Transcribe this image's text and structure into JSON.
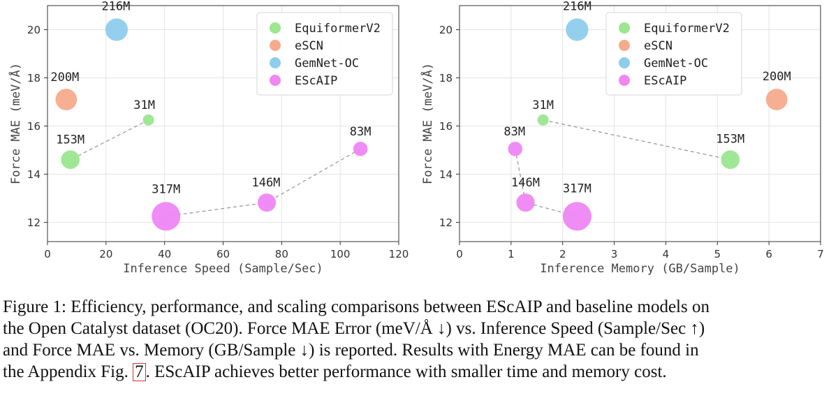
{
  "chart_data": [
    {
      "type": "scatter",
      "xlabel": "Inference Speed (Sample/Sec)",
      "ylabel": "Force MAE (meV/Å)",
      "xlim": [
        0,
        120
      ],
      "ylim": [
        11.2,
        21
      ],
      "xticks": [
        0,
        20,
        40,
        60,
        80,
        100,
        120
      ],
      "yticks": [
        12,
        14,
        16,
        18,
        20
      ],
      "grid": true,
      "legend_position": "top-right",
      "series": [
        {
          "name": "EquiformerV2",
          "color": "#9be68f",
          "points": [
            {
              "x": 34.5,
              "y": 16.25,
              "params_m": 31,
              "label": "31M"
            },
            {
              "x": 7.8,
              "y": 14.6,
              "params_m": 153,
              "label": "153M"
            }
          ],
          "connected": true
        },
        {
          "name": "eSCN",
          "color": "#f6ab8c",
          "points": [
            {
              "x": 6.4,
              "y": 17.1,
              "params_m": 200,
              "label": "200M"
            }
          ],
          "connected": false
        },
        {
          "name": "GemNet-OC",
          "color": "#8ecdec",
          "points": [
            {
              "x": 23.6,
              "y": 20.0,
              "params_m": 216,
              "label": "216M"
            }
          ],
          "connected": false
        },
        {
          "name": "EScAIP",
          "color": "#ee86f4",
          "points": [
            {
              "x": 106.9,
              "y": 15.05,
              "params_m": 83,
              "label": "83M"
            },
            {
              "x": 74.9,
              "y": 12.82,
              "params_m": 146,
              "label": "146M"
            },
            {
              "x": 40.5,
              "y": 12.25,
              "params_m": 317,
              "label": "317M"
            }
          ],
          "connected": true
        }
      ]
    },
    {
      "type": "scatter",
      "xlabel": "Inference Memory (GB/Sample)",
      "ylabel": "Force MAE (meV/Å)",
      "xlim": [
        0,
        7
      ],
      "ylim": [
        11.2,
        21
      ],
      "xticks": [
        0,
        1,
        2,
        3,
        4,
        5,
        6,
        7
      ],
      "yticks": [
        12,
        14,
        16,
        18,
        20
      ],
      "grid": true,
      "legend_position": "top-right",
      "series": [
        {
          "name": "EquiformerV2",
          "color": "#9be68f",
          "points": [
            {
              "x": 1.62,
              "y": 16.25,
              "params_m": 31,
              "label": "31M"
            },
            {
              "x": 5.25,
              "y": 14.6,
              "params_m": 153,
              "label": "153M"
            }
          ],
          "connected": true
        },
        {
          "name": "eSCN",
          "color": "#f6ab8c",
          "points": [
            {
              "x": 6.15,
              "y": 17.1,
              "params_m": 200,
              "label": "200M"
            }
          ],
          "connected": false
        },
        {
          "name": "GemNet-OC",
          "color": "#8ecdec",
          "points": [
            {
              "x": 2.28,
              "y": 20.0,
              "params_m": 216,
              "label": "216M"
            }
          ],
          "connected": false
        },
        {
          "name": "EScAIP",
          "color": "#ee86f4",
          "points": [
            {
              "x": 1.08,
              "y": 15.05,
              "params_m": 83,
              "label": "83M"
            },
            {
              "x": 1.28,
              "y": 12.82,
              "params_m": 146,
              "label": "146M"
            },
            {
              "x": 2.28,
              "y": 12.25,
              "params_m": 317,
              "label": "317M"
            }
          ],
          "connected": true
        }
      ]
    }
  ],
  "caption": {
    "line1": "Figure 1: Efficiency, performance, and scaling comparisons between EScAIP and baseline models on",
    "line2": "the Open Catalyst dataset (OC20). Force MAE Error (meV/Å ↓) vs. Inference Speed (Sample/Sec ↑)",
    "line3": "and Force MAE vs. Memory (GB/Sample ↓) is reported. Results with Energy MAE can be found in",
    "line4_before": "the Appendix Fig.",
    "line4_ref": "7",
    "line4_after": ". EScAIP achieves better performance with smaller time and memory cost."
  }
}
